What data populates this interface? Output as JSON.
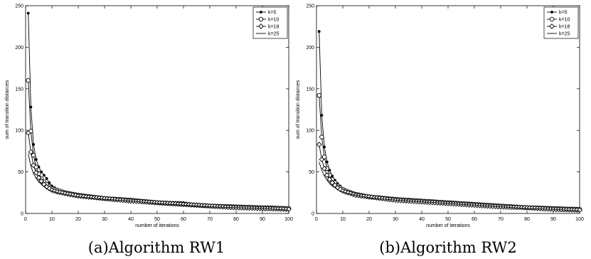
{
  "captions": {
    "a": "(a)Algorithm RW1",
    "b": "(b)Algorithm RW2"
  },
  "colors": {
    "line": "#000000",
    "background": "#ffffff"
  },
  "chart_data": [
    {
      "type": "line",
      "title": "",
      "xlabel": "number of iterations",
      "ylabel": "sum of transition distances",
      "xlim": [
        0,
        100
      ],
      "ylim": [
        0,
        250
      ],
      "xticks": [
        0,
        10,
        20,
        30,
        40,
        50,
        60,
        70,
        80,
        90,
        100
      ],
      "yticks": [
        0,
        50,
        100,
        150,
        200,
        250
      ],
      "grid": false,
      "legend": "top-right",
      "series": [
        {
          "name": "k=5",
          "marker": "dot",
          "key_points": [
            [
              1,
              241
            ],
            [
              2,
              128
            ],
            [
              3,
              83
            ],
            [
              4,
              65
            ],
            [
              5,
              56
            ],
            [
              6,
              50
            ],
            [
              7,
              46
            ],
            [
              8,
              42
            ],
            [
              9,
              37
            ],
            [
              10,
              33
            ],
            [
              12,
              29
            ],
            [
              15,
              26
            ],
            [
              20,
              22
            ],
            [
              30,
              19
            ],
            [
              40,
              16
            ],
            [
              50,
              14
            ],
            [
              60,
              13
            ],
            [
              62,
              12
            ],
            [
              65,
              10
            ],
            [
              70,
              9
            ],
            [
              80,
              8
            ],
            [
              90,
              7
            ],
            [
              100,
              6
            ]
          ]
        },
        {
          "name": "k=10",
          "marker": "circle",
          "key_points": [
            [
              1,
              160
            ],
            [
              2,
              99
            ],
            [
              3,
              70
            ],
            [
              4,
              56
            ],
            [
              5,
              48
            ],
            [
              6,
              42
            ],
            [
              7,
              38
            ],
            [
              8,
              35
            ],
            [
              9,
              32
            ],
            [
              10,
              30
            ],
            [
              12,
              28
            ],
            [
              15,
              25
            ],
            [
              20,
              22
            ],
            [
              30,
              18
            ],
            [
              40,
              16
            ],
            [
              50,
              13
            ],
            [
              60,
              11
            ],
            [
              70,
              9
            ],
            [
              80,
              8
            ],
            [
              90,
              7
            ],
            [
              100,
              6
            ]
          ]
        },
        {
          "name": "k=18",
          "marker": "diamond",
          "key_points": [
            [
              1,
              97
            ],
            [
              2,
              74
            ],
            [
              3,
              58
            ],
            [
              4,
              49
            ],
            [
              5,
              43
            ],
            [
              6,
              39
            ],
            [
              7,
              35
            ],
            [
              8,
              32
            ],
            [
              9,
              30
            ],
            [
              10,
              28
            ],
            [
              12,
              26
            ],
            [
              15,
              24
            ],
            [
              20,
              21
            ],
            [
              30,
              18
            ],
            [
              40,
              15
            ],
            [
              50,
              13
            ],
            [
              60,
              11
            ],
            [
              70,
              9
            ],
            [
              80,
              7
            ],
            [
              90,
              6
            ],
            [
              100,
              5
            ]
          ]
        },
        {
          "name": "k=25",
          "marker": "none",
          "key_points": [
            [
              1,
              72
            ],
            [
              2,
              57
            ],
            [
              3,
              48
            ],
            [
              4,
              42
            ],
            [
              5,
              38
            ],
            [
              6,
              35
            ],
            [
              7,
              32
            ],
            [
              8,
              30
            ],
            [
              9,
              28
            ],
            [
              10,
              27
            ],
            [
              12,
              25
            ],
            [
              15,
              23
            ],
            [
              20,
              20
            ],
            [
              30,
              17
            ],
            [
              40,
              15
            ],
            [
              50,
              12
            ],
            [
              60,
              10
            ],
            [
              70,
              8
            ],
            [
              80,
              7
            ],
            [
              90,
              6
            ],
            [
              100,
              4
            ]
          ]
        }
      ]
    },
    {
      "type": "line",
      "title": "",
      "xlabel": "number of iterations",
      "ylabel": "sum of transition distances",
      "xlim": [
        0,
        100
      ],
      "ylim": [
        0,
        250
      ],
      "xticks": [
        0,
        10,
        20,
        30,
        40,
        50,
        60,
        70,
        80,
        90,
        100
      ],
      "yticks": [
        0,
        50,
        100,
        150,
        200,
        250
      ],
      "grid": false,
      "legend": "top-right",
      "series": [
        {
          "name": "k=5",
          "marker": "dot",
          "key_points": [
            [
              1,
              219
            ],
            [
              2,
              118
            ],
            [
              3,
              80
            ],
            [
              4,
              62
            ],
            [
              5,
              52
            ],
            [
              6,
              45
            ],
            [
              7,
              40
            ],
            [
              8,
              36
            ],
            [
              9,
              33
            ],
            [
              10,
              30
            ],
            [
              12,
              27
            ],
            [
              15,
              24
            ],
            [
              20,
              21
            ],
            [
              30,
              18
            ],
            [
              40,
              15
            ],
            [
              50,
              13
            ],
            [
              60,
              11
            ],
            [
              70,
              9
            ],
            [
              80,
              7
            ],
            [
              90,
              6
            ],
            [
              100,
              5
            ]
          ]
        },
        {
          "name": "k=10",
          "marker": "circle",
          "key_points": [
            [
              1,
              142
            ],
            [
              2,
              92
            ],
            [
              3,
              68
            ],
            [
              4,
              54
            ],
            [
              5,
              46
            ],
            [
              6,
              41
            ],
            [
              7,
              37
            ],
            [
              8,
              33
            ],
            [
              9,
              31
            ],
            [
              10,
              29
            ],
            [
              12,
              26
            ],
            [
              15,
              23
            ],
            [
              20,
              20
            ],
            [
              30,
              17
            ],
            [
              40,
              15
            ],
            [
              50,
              13
            ],
            [
              60,
              11
            ],
            [
              70,
              9
            ],
            [
              80,
              7
            ],
            [
              90,
              6
            ],
            [
              100,
              5
            ]
          ]
        },
        {
          "name": "k=18",
          "marker": "diamond",
          "key_points": [
            [
              1,
              83
            ],
            [
              2,
              65
            ],
            [
              3,
              54
            ],
            [
              4,
              46
            ],
            [
              5,
              41
            ],
            [
              6,
              37
            ],
            [
              7,
              34
            ],
            [
              8,
              31
            ],
            [
              9,
              29
            ],
            [
              10,
              27
            ],
            [
              12,
              25
            ],
            [
              15,
              22
            ],
            [
              20,
              20
            ],
            [
              30,
              16
            ],
            [
              40,
              14
            ],
            [
              50,
              12
            ],
            [
              60,
              10
            ],
            [
              70,
              8
            ],
            [
              80,
              7
            ],
            [
              90,
              5
            ],
            [
              100,
              4
            ]
          ]
        },
        {
          "name": "k=25",
          "marker": "none",
          "key_points": [
            [
              1,
              62
            ],
            [
              2,
              52
            ],
            [
              3,
              45
            ],
            [
              4,
              40
            ],
            [
              5,
              36
            ],
            [
              6,
              33
            ],
            [
              7,
              31
            ],
            [
              8,
              29
            ],
            [
              9,
              27
            ],
            [
              10,
              26
            ],
            [
              12,
              24
            ],
            [
              15,
              22
            ],
            [
              20,
              19
            ],
            [
              30,
              16
            ],
            [
              40,
              14
            ],
            [
              50,
              12
            ],
            [
              60,
              10
            ],
            [
              70,
              8
            ],
            [
              80,
              6
            ],
            [
              90,
              5
            ],
            [
              100,
              3
            ]
          ]
        }
      ]
    }
  ]
}
